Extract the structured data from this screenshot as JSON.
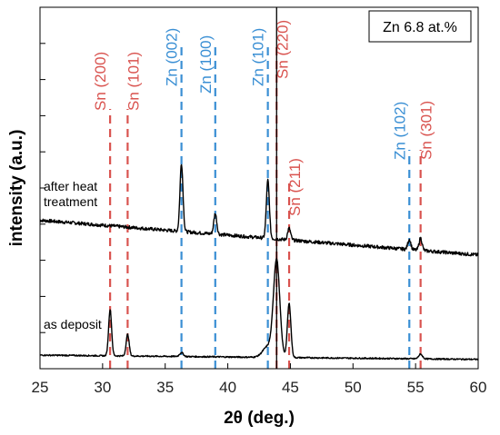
{
  "chart_data": {
    "type": "line",
    "xlabel": "2θ (deg.)",
    "ylabel": "intensity (a.u.)",
    "xlim": [
      25,
      60
    ],
    "x_ticks": [
      25,
      30,
      35,
      40,
      45,
      50,
      55,
      60
    ],
    "y_ticks_labeled": false,
    "grid": false,
    "annotation_box": "Zn 6.8 at.%",
    "colors": {
      "sn": "#d9534f",
      "zn": "#3a8fd4",
      "trace": "#000000",
      "marker": "#000000"
    },
    "reference_marker_x": 43.9,
    "series": [
      {
        "name": "after heat treatment",
        "label_lines": [
          "after heat",
          "treatment"
        ],
        "baseline_start": 78,
        "baseline_end": 27,
        "noise": 2.5,
        "peaks": [
          {
            "x": 36.3,
            "h": 100,
            "w": 0.12
          },
          {
            "x": 39.0,
            "h": 30,
            "w": 0.12
          },
          {
            "x": 43.2,
            "h": 85,
            "w": 0.12
          },
          {
            "x": 44.9,
            "h": 17,
            "w": 0.12
          },
          {
            "x": 54.5,
            "h": 15,
            "w": 0.12
          },
          {
            "x": 55.4,
            "h": 18,
            "w": 0.12
          }
        ]
      },
      {
        "name": "as deposit",
        "label_lines": [
          "as deposit"
        ],
        "baseline_start": 7,
        "baseline_end": 1.5,
        "noise": 0.9,
        "peaks": [
          {
            "x": 30.6,
            "h": 60,
            "w": 0.12
          },
          {
            "x": 32.0,
            "h": 28,
            "w": 0.12
          },
          {
            "x": 36.3,
            "h": 5,
            "w": 0.15
          },
          {
            "x": 43.2,
            "h": 14,
            "w": 0.4
          },
          {
            "x": 43.9,
            "h": 125,
            "w": 0.25
          },
          {
            "x": 44.9,
            "h": 70,
            "w": 0.14
          },
          {
            "x": 55.4,
            "h": 6,
            "w": 0.15
          }
        ]
      }
    ],
    "reference_lines": [
      {
        "phase": "Sn",
        "hkl": "(200)",
        "label": "Sn (200)",
        "x": 30.6,
        "top": 200
      },
      {
        "phase": "Sn",
        "hkl": "(101)",
        "label": "Sn (101)",
        "x": 32.0,
        "top": 200
      },
      {
        "phase": "Zn",
        "hkl": "(002)",
        "label": "Zn (002)",
        "x": 36.3,
        "top": 240
      },
      {
        "phase": "Zn",
        "hkl": "(100)",
        "label": "Zn (100)",
        "x": 39.0,
        "top": 240
      },
      {
        "phase": "Zn",
        "hkl": "(101)",
        "label": "Zn (101)",
        "x": 43.2,
        "top": 240
      },
      {
        "phase": "Sn",
        "hkl": "(220)",
        "label": "Sn (220)",
        "x": 43.9,
        "top": 240
      },
      {
        "phase": "Sn",
        "hkl": "(211)",
        "label": "Sn (211)",
        "x": 44.9,
        "top": 150
      },
      {
        "phase": "Zn",
        "hkl": "(102)",
        "label": "Zn (102)",
        "x": 54.5,
        "top": 170
      },
      {
        "phase": "Sn",
        "hkl": "(301)",
        "label": "Sn (301)",
        "x": 55.4,
        "top": 170
      }
    ]
  }
}
